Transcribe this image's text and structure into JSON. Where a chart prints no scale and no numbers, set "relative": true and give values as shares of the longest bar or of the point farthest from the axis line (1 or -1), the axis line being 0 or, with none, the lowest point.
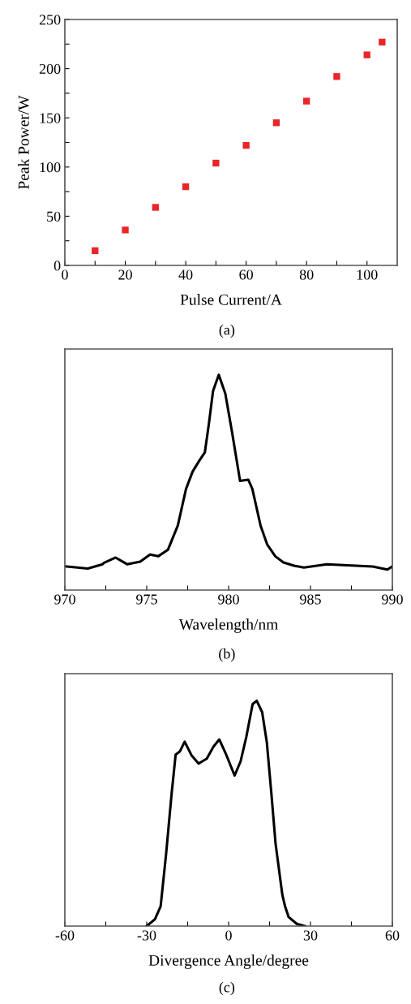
{
  "chart_data": [
    {
      "type": "scatter",
      "xlabel": "Pulse Current/A",
      "ylabel": "Peak Power/W",
      "annotations": [
        "(a)"
      ],
      "x": [
        10,
        20,
        30,
        40,
        50,
        60,
        70,
        80,
        90,
        100,
        105
      ],
      "series": [
        {
          "color": "#e8262a",
          "values": [
            15,
            36,
            59,
            80,
            104,
            122,
            145,
            167,
            192,
            214,
            227
          ]
        }
      ],
      "marker": "square",
      "xlim": [
        0,
        110
      ],
      "ylim": [
        0,
        250
      ],
      "xticks": [
        0,
        {
          "value": 10,
          "label": null
        },
        20,
        {
          "value": 30,
          "label": null
        },
        40,
        {
          "value": 50,
          "label": null
        },
        60,
        {
          "value": 70,
          "label": null
        },
        80,
        {
          "value": 90,
          "label": null
        },
        100
      ],
      "yticks": [
        0,
        {
          "value": 25,
          "label": null
        },
        50,
        {
          "value": 75,
          "label": null
        },
        100,
        {
          "value": 125,
          "label": null
        },
        150,
        {
          "value": 175,
          "label": null
        },
        200,
        {
          "value": 225,
          "label": null
        },
        250
      ]
    },
    {
      "type": "line",
      "xlabel": "Wavelength/nm",
      "annotations": [
        "(b)"
      ],
      "relative": true,
      "tick_labels": "x",
      "series": [
        {
          "color": "#000000",
          "x": [
            970,
            971.4,
            972.3,
            972.4,
            973.1,
            973.8,
            974.6,
            975.2,
            975.7,
            976.3,
            976.9,
            977.4,
            977.8,
            978.2,
            978.55,
            978.8,
            979.05,
            979.4,
            979.8,
            980.2,
            980.7,
            981.2,
            981.45,
            981.95,
            982.35,
            982.85,
            983.35,
            984.0,
            984.6,
            986.0,
            988.8,
            989.7,
            990
          ],
          "values": [
            0.11,
            0.1,
            0.12,
            0.127,
            0.151,
            0.12,
            0.132,
            0.165,
            0.157,
            0.188,
            0.3,
            0.47,
            0.55,
            0.6,
            0.64,
            0.775,
            0.925,
            1.0,
            0.913,
            0.738,
            0.507,
            0.513,
            0.47,
            0.3,
            0.213,
            0.157,
            0.128,
            0.113,
            0.105,
            0.12,
            0.109,
            0.095,
            0.11
          ]
        }
      ],
      "xlim": [
        970,
        990
      ],
      "xticks": [
        970,
        {
          "value": 972.5,
          "label": null
        },
        975,
        {
          "value": 977.5,
          "label": null
        },
        980,
        {
          "value": 982.5,
          "label": null
        },
        985,
        {
          "value": 987.5,
          "label": null
        },
        990
      ]
    },
    {
      "type": "line",
      "xlabel": "Divergence Angle/degree",
      "annotations": [
        "(c)"
      ],
      "relative": true,
      "tick_labels": "x",
      "series": [
        {
          "color": "#000000",
          "x": [
            -30,
            -27,
            -24.9,
            -22.9,
            -20.9,
            -19.4,
            -17.9,
            -16.1,
            -13.5,
            -11.0,
            -8.0,
            -5.5,
            -3.4,
            -1.1,
            2.2,
            4.4,
            6.5,
            8.8,
            10.3,
            12.3,
            14.0,
            15.7,
            17.2,
            19.7,
            20.7,
            22,
            25,
            28
          ],
          "values": [
            0,
            0.03,
            0.088,
            0.32,
            0.585,
            0.761,
            0.774,
            0.818,
            0.756,
            0.721,
            0.743,
            0.797,
            0.828,
            0.767,
            0.668,
            0.731,
            0.84,
            0.985,
            1.0,
            0.949,
            0.816,
            0.585,
            0.367,
            0.138,
            0.087,
            0.04,
            0.01,
            0.0
          ]
        }
      ],
      "xlim": [
        -60,
        60
      ],
      "xticks": [
        -60,
        {
          "value": -45,
          "label": null
        },
        -30,
        {
          "value": -15,
          "label": null
        },
        0,
        {
          "value": 15,
          "label": null
        },
        30,
        {
          "value": 45,
          "label": null
        },
        60
      ]
    }
  ]
}
